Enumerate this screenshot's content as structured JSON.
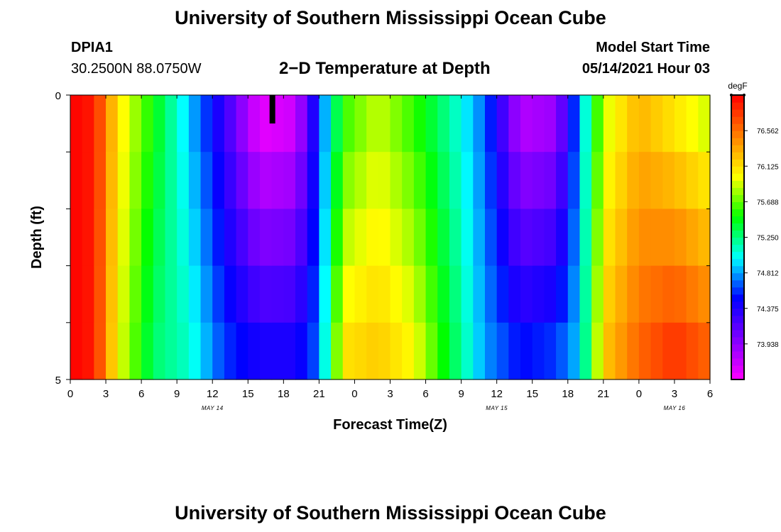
{
  "header": {
    "title": "University of Southern Mississippi Ocean Cube",
    "station_id": "DPIA1",
    "location": "30.2500N  88.0750W",
    "subtitle": "2−D Temperature at Depth",
    "model_start_label": "Model Start Time",
    "model_start_value": "05/14/2021 Hour 03"
  },
  "footer": {
    "title": "University of Southern Mississippi Ocean Cube"
  },
  "chart_data": {
    "type": "heatmap",
    "title": "2−D Temperature at Depth",
    "xlabel": "Forecast Time(Z)",
    "ylabel": "Depth (ft)",
    "x_tick_labels": [
      "0",
      "3",
      "6",
      "9",
      "12",
      "15",
      "18",
      "21",
      "0",
      "3",
      "6",
      "9",
      "12",
      "15",
      "18",
      "21",
      "0",
      "3",
      "6"
    ],
    "x_date_labels": [
      {
        "label": "MAY 14",
        "hour": 12
      },
      {
        "label": "MAY 15",
        "hour": 36
      },
      {
        "label": "MAY 16",
        "hour": 51
      }
    ],
    "x_range_hours": [
      0,
      54
    ],
    "y_tick_labels": [
      "0",
      "5"
    ],
    "y_range": [
      0,
      5
    ],
    "y_reversed": true,
    "depth_levels": [
      0,
      1,
      2,
      3,
      4
    ],
    "time_step_hours": 1,
    "colorbar": {
      "unit": "degF",
      "labels": [
        "76.562",
        "76.125",
        "75.688",
        "75.250",
        "74.812",
        "74.375",
        "73.938"
      ],
      "min": 73.5,
      "max": 77.0,
      "colors": [
        "#ff00ff",
        "#8000ff",
        "#0000ff",
        "#00ffff",
        "#00ff00",
        "#ffff00",
        "#ff8000",
        "#ff0000"
      ]
    },
    "marker": {
      "hour": 17,
      "depth_from": 0,
      "depth_to": 0.5,
      "color": "#000000"
    },
    "anchors": {
      "hours": [
        0,
        2,
        4,
        7,
        10,
        13,
        16,
        19,
        21,
        23,
        26,
        29,
        32,
        35,
        38,
        41,
        43,
        45,
        48,
        51,
        54
      ],
      "surface": [
        77.0,
        76.9,
        76.1,
        75.5,
        74.9,
        74.3,
        73.6,
        73.7,
        74.6,
        75.6,
        75.9,
        75.6,
        75.2,
        74.7,
        73.8,
        73.9,
        74.8,
        75.9,
        76.3,
        76.1,
        75.9
      ],
      "bottom": [
        77.0,
        76.9,
        76.0,
        75.3,
        75.1,
        74.6,
        74.4,
        74.4,
        74.7,
        76.1,
        76.2,
        76.0,
        75.4,
        74.8,
        74.5,
        74.6,
        74.9,
        76.2,
        76.6,
        76.8,
        76.6
      ]
    }
  }
}
